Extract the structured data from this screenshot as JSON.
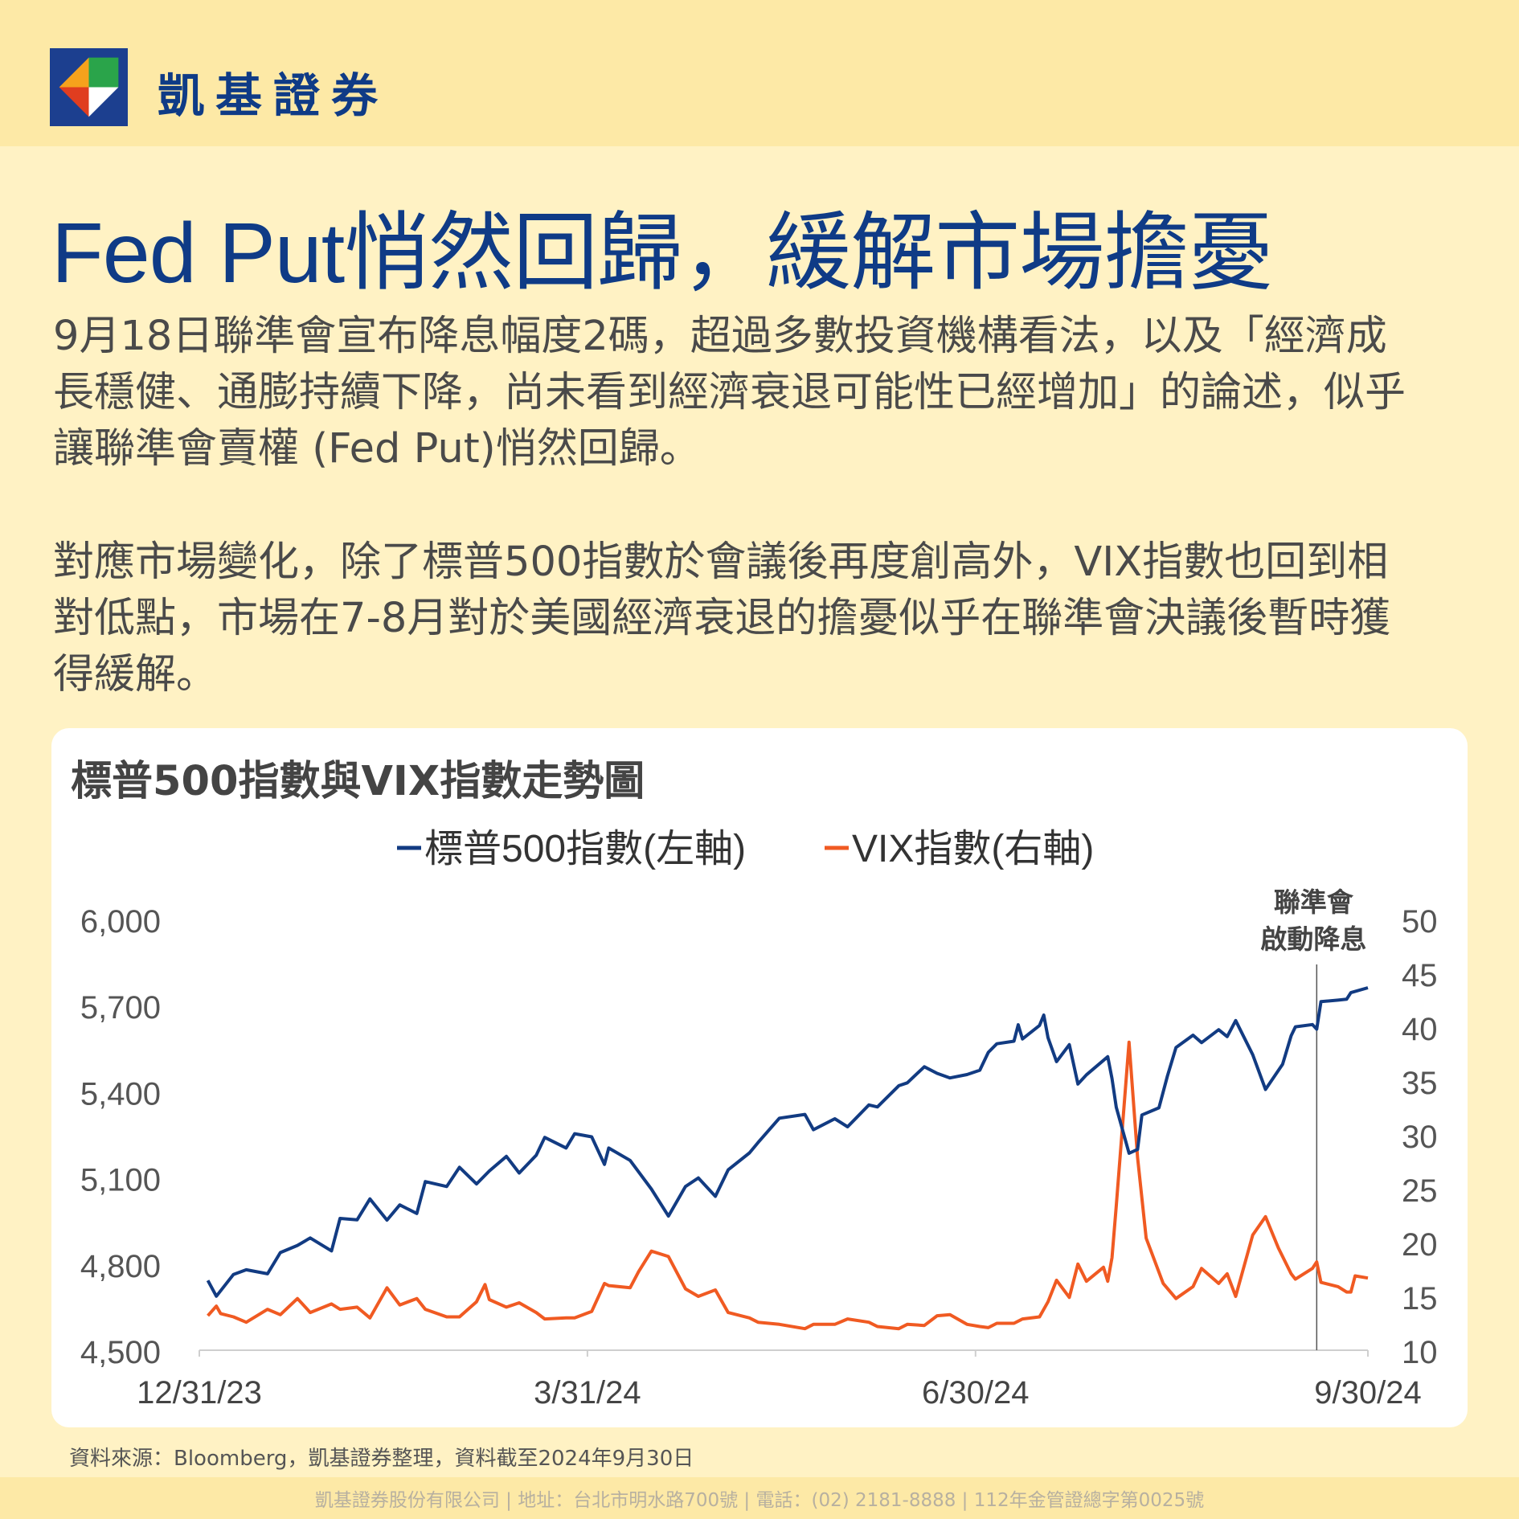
{
  "brand": {
    "name": "凱基證券"
  },
  "headline": "Fed Put悄然回歸，緩解市場擔憂",
  "paragraphs": [
    "9月18日聯準會宣布降息幅度2碼，超過多數投資機構看法，以及「經濟成長穩健、通膨持續下降，尚未看到經濟衰退可能性已經增加」的論述，似乎讓聯準會賣權 (Fed Put)悄然回歸。",
    "對應市場變化，除了標普500指數於會議後再度創高外，VIX指數也回到相對低點，市場在7-8月對於美國經濟衰退的擔憂似乎在聯準會決議後暫時獲得緩解。"
  ],
  "chart_data": {
    "type": "line",
    "title": "標普500指數與VIX指數走勢圖",
    "legend_position": "top-center",
    "x_tick_labels": [
      "12/31/23",
      "3/31/24",
      "6/30/24",
      "9/30/24"
    ],
    "x_range": [
      "2023-12-31",
      "2024-09-30"
    ],
    "y_left": {
      "ticks": [
        "6,000",
        "5,700",
        "5,400",
        "5,100",
        "4,800",
        "4,500"
      ],
      "ylim": [
        4500,
        6000
      ]
    },
    "y_right": {
      "ticks": [
        "50",
        "45",
        "40",
        "35",
        "30",
        "25",
        "20",
        "15",
        "10"
      ],
      "ylim": [
        10,
        50
      ]
    },
    "annotation": {
      "date": "2024-09-18",
      "lines": [
        "聯準會",
        "啟動降息"
      ]
    },
    "series": [
      {
        "name": "標普500指數(左軸)",
        "axis": "left",
        "color": "#123b82",
        "points": [
          [
            "2024-01-02",
            4743
          ],
          [
            "2024-01-04",
            4688
          ],
          [
            "2024-01-08",
            4764
          ],
          [
            "2024-01-11",
            4780
          ],
          [
            "2024-01-16",
            4766
          ],
          [
            "2024-01-19",
            4840
          ],
          [
            "2024-01-23",
            4865
          ],
          [
            "2024-01-26",
            4891
          ],
          [
            "2024-01-31",
            4846
          ],
          [
            "2024-02-02",
            4959
          ],
          [
            "2024-02-06",
            4954
          ],
          [
            "2024-02-09",
            5027
          ],
          [
            "2024-02-13",
            4953
          ],
          [
            "2024-02-16",
            5006
          ],
          [
            "2024-02-20",
            4976
          ],
          [
            "2024-02-22",
            5087
          ],
          [
            "2024-02-27",
            5070
          ],
          [
            "2024-03-01",
            5137
          ],
          [
            "2024-03-05",
            5079
          ],
          [
            "2024-03-08",
            5124
          ],
          [
            "2024-03-12",
            5175
          ],
          [
            "2024-03-15",
            5117
          ],
          [
            "2024-03-19",
            5179
          ],
          [
            "2024-03-21",
            5241
          ],
          [
            "2024-03-26",
            5204
          ],
          [
            "2024-03-28",
            5254
          ],
          [
            "2024-04-01",
            5243
          ],
          [
            "2024-04-04",
            5147
          ],
          [
            "2024-04-05",
            5204
          ],
          [
            "2024-04-10",
            5161
          ],
          [
            "2024-04-15",
            5061
          ],
          [
            "2024-04-19",
            4967
          ],
          [
            "2024-04-23",
            5070
          ],
          [
            "2024-04-26",
            5100
          ],
          [
            "2024-04-30",
            5036
          ],
          [
            "2024-05-03",
            5128
          ],
          [
            "2024-05-08",
            5187
          ],
          [
            "2024-05-10",
            5223
          ],
          [
            "2024-05-15",
            5308
          ],
          [
            "2024-05-21",
            5321
          ],
          [
            "2024-05-23",
            5268
          ],
          [
            "2024-05-28",
            5306
          ],
          [
            "2024-05-31",
            5278
          ],
          [
            "2024-06-05",
            5354
          ],
          [
            "2024-06-07",
            5347
          ],
          [
            "2024-06-12",
            5421
          ],
          [
            "2024-06-14",
            5431
          ],
          [
            "2024-06-18",
            5487
          ],
          [
            "2024-06-21",
            5464
          ],
          [
            "2024-06-24",
            5448
          ],
          [
            "2024-06-28",
            5460
          ],
          [
            "2024-07-01",
            5475
          ],
          [
            "2024-07-03",
            5537
          ],
          [
            "2024-07-05",
            5567
          ],
          [
            "2024-07-09",
            5576
          ],
          [
            "2024-07-10",
            5633
          ],
          [
            "2024-07-11",
            5584
          ],
          [
            "2024-07-15",
            5631
          ],
          [
            "2024-07-16",
            5667
          ],
          [
            "2024-07-17",
            5588
          ],
          [
            "2024-07-19",
            5505
          ],
          [
            "2024-07-22",
            5564
          ],
          [
            "2024-07-24",
            5427
          ],
          [
            "2024-07-26",
            5459
          ],
          [
            "2024-07-31",
            5522
          ],
          [
            "2024-08-01",
            5446
          ],
          [
            "2024-08-02",
            5346
          ],
          [
            "2024-08-05",
            5186
          ],
          [
            "2024-08-07",
            5199
          ],
          [
            "2024-08-08",
            5319
          ],
          [
            "2024-08-12",
            5344
          ],
          [
            "2024-08-14",
            5455
          ],
          [
            "2024-08-16",
            5554
          ],
          [
            "2024-08-20",
            5597
          ],
          [
            "2024-08-22",
            5571
          ],
          [
            "2024-08-26",
            5616
          ],
          [
            "2024-08-28",
            5592
          ],
          [
            "2024-08-30",
            5648
          ],
          [
            "2024-09-03",
            5529
          ],
          [
            "2024-09-06",
            5408
          ],
          [
            "2024-09-10",
            5496
          ],
          [
            "2024-09-12",
            5595
          ],
          [
            "2024-09-13",
            5626
          ],
          [
            "2024-09-17",
            5634
          ],
          [
            "2024-09-18",
            5618
          ],
          [
            "2024-09-19",
            5714
          ],
          [
            "2024-09-23",
            5719
          ],
          [
            "2024-09-25",
            5722
          ],
          [
            "2024-09-26",
            5745
          ],
          [
            "2024-09-30",
            5762
          ]
        ]
      },
      {
        "name": "VIX指數(右軸)",
        "axis": "right",
        "color": "#f05a22",
        "points": [
          [
            "2024-01-02",
            13.2
          ],
          [
            "2024-01-04",
            14.1
          ],
          [
            "2024-01-05",
            13.4
          ],
          [
            "2024-01-08",
            13.1
          ],
          [
            "2024-01-11",
            12.6
          ],
          [
            "2024-01-16",
            13.8
          ],
          [
            "2024-01-19",
            13.3
          ],
          [
            "2024-01-23",
            14.8
          ],
          [
            "2024-01-26",
            13.5
          ],
          [
            "2024-01-31",
            14.3
          ],
          [
            "2024-02-02",
            13.8
          ],
          [
            "2024-02-06",
            14.0
          ],
          [
            "2024-02-09",
            13.0
          ],
          [
            "2024-02-13",
            15.8
          ],
          [
            "2024-02-16",
            14.2
          ],
          [
            "2024-02-20",
            14.8
          ],
          [
            "2024-02-22",
            13.8
          ],
          [
            "2024-02-27",
            13.1
          ],
          [
            "2024-03-01",
            13.1
          ],
          [
            "2024-03-05",
            14.5
          ],
          [
            "2024-03-07",
            16.1
          ],
          [
            "2024-03-08",
            14.7
          ],
          [
            "2024-03-12",
            14.0
          ],
          [
            "2024-03-15",
            14.4
          ],
          [
            "2024-03-19",
            13.5
          ],
          [
            "2024-03-21",
            12.9
          ],
          [
            "2024-03-26",
            13.0
          ],
          [
            "2024-03-28",
            13.0
          ],
          [
            "2024-04-01",
            13.6
          ],
          [
            "2024-04-04",
            16.2
          ],
          [
            "2024-04-05",
            16.0
          ],
          [
            "2024-04-10",
            15.8
          ],
          [
            "2024-04-12",
            17.3
          ],
          [
            "2024-04-15",
            19.2
          ],
          [
            "2024-04-19",
            18.7
          ],
          [
            "2024-04-23",
            15.7
          ],
          [
            "2024-04-26",
            15.0
          ],
          [
            "2024-04-30",
            15.6
          ],
          [
            "2024-05-03",
            13.5
          ],
          [
            "2024-05-08",
            13.0
          ],
          [
            "2024-05-10",
            12.6
          ],
          [
            "2024-05-15",
            12.4
          ],
          [
            "2024-05-21",
            12.0
          ],
          [
            "2024-05-23",
            12.4
          ],
          [
            "2024-05-28",
            12.4
          ],
          [
            "2024-05-31",
            12.9
          ],
          [
            "2024-06-05",
            12.6
          ],
          [
            "2024-06-07",
            12.2
          ],
          [
            "2024-06-12",
            12.0
          ],
          [
            "2024-06-14",
            12.4
          ],
          [
            "2024-06-18",
            12.3
          ],
          [
            "2024-06-21",
            13.2
          ],
          [
            "2024-06-24",
            13.3
          ],
          [
            "2024-06-28",
            12.4
          ],
          [
            "2024-07-01",
            12.2
          ],
          [
            "2024-07-03",
            12.1
          ],
          [
            "2024-07-05",
            12.5
          ],
          [
            "2024-07-09",
            12.5
          ],
          [
            "2024-07-11",
            12.9
          ],
          [
            "2024-07-15",
            13.1
          ],
          [
            "2024-07-17",
            14.5
          ],
          [
            "2024-07-19",
            16.5
          ],
          [
            "2024-07-22",
            14.9
          ],
          [
            "2024-07-24",
            18.0
          ],
          [
            "2024-07-26",
            16.4
          ],
          [
            "2024-07-30",
            17.7
          ],
          [
            "2024-07-31",
            16.4
          ],
          [
            "2024-08-01",
            18.6
          ],
          [
            "2024-08-02",
            23.4
          ],
          [
            "2024-08-05",
            38.6
          ],
          [
            "2024-08-07",
            27.9
          ],
          [
            "2024-08-09",
            20.4
          ],
          [
            "2024-08-13",
            16.2
          ],
          [
            "2024-08-16",
            14.8
          ],
          [
            "2024-08-20",
            15.9
          ],
          [
            "2024-08-22",
            17.6
          ],
          [
            "2024-08-26",
            16.2
          ],
          [
            "2024-08-28",
            17.1
          ],
          [
            "2024-08-30",
            15.0
          ],
          [
            "2024-09-03",
            20.7
          ],
          [
            "2024-09-06",
            22.4
          ],
          [
            "2024-09-09",
            19.5
          ],
          [
            "2024-09-12",
            17.1
          ],
          [
            "2024-09-13",
            16.6
          ],
          [
            "2024-09-17",
            17.6
          ],
          [
            "2024-09-18",
            18.2
          ],
          [
            "2024-09-19",
            16.3
          ],
          [
            "2024-09-23",
            15.9
          ],
          [
            "2024-09-25",
            15.4
          ],
          [
            "2024-09-26",
            15.4
          ],
          [
            "2024-09-27",
            16.9
          ],
          [
            "2024-09-30",
            16.7
          ]
        ]
      }
    ]
  },
  "source_note": "資料來源：Bloomberg，凱基證券整理，資料截至2024年9月30日",
  "footer": "凱基證券股份有限公司 | 地址：台北市明水路700號 | 電話：(02) 2181-8888 | 112年金管證總字第0025號"
}
